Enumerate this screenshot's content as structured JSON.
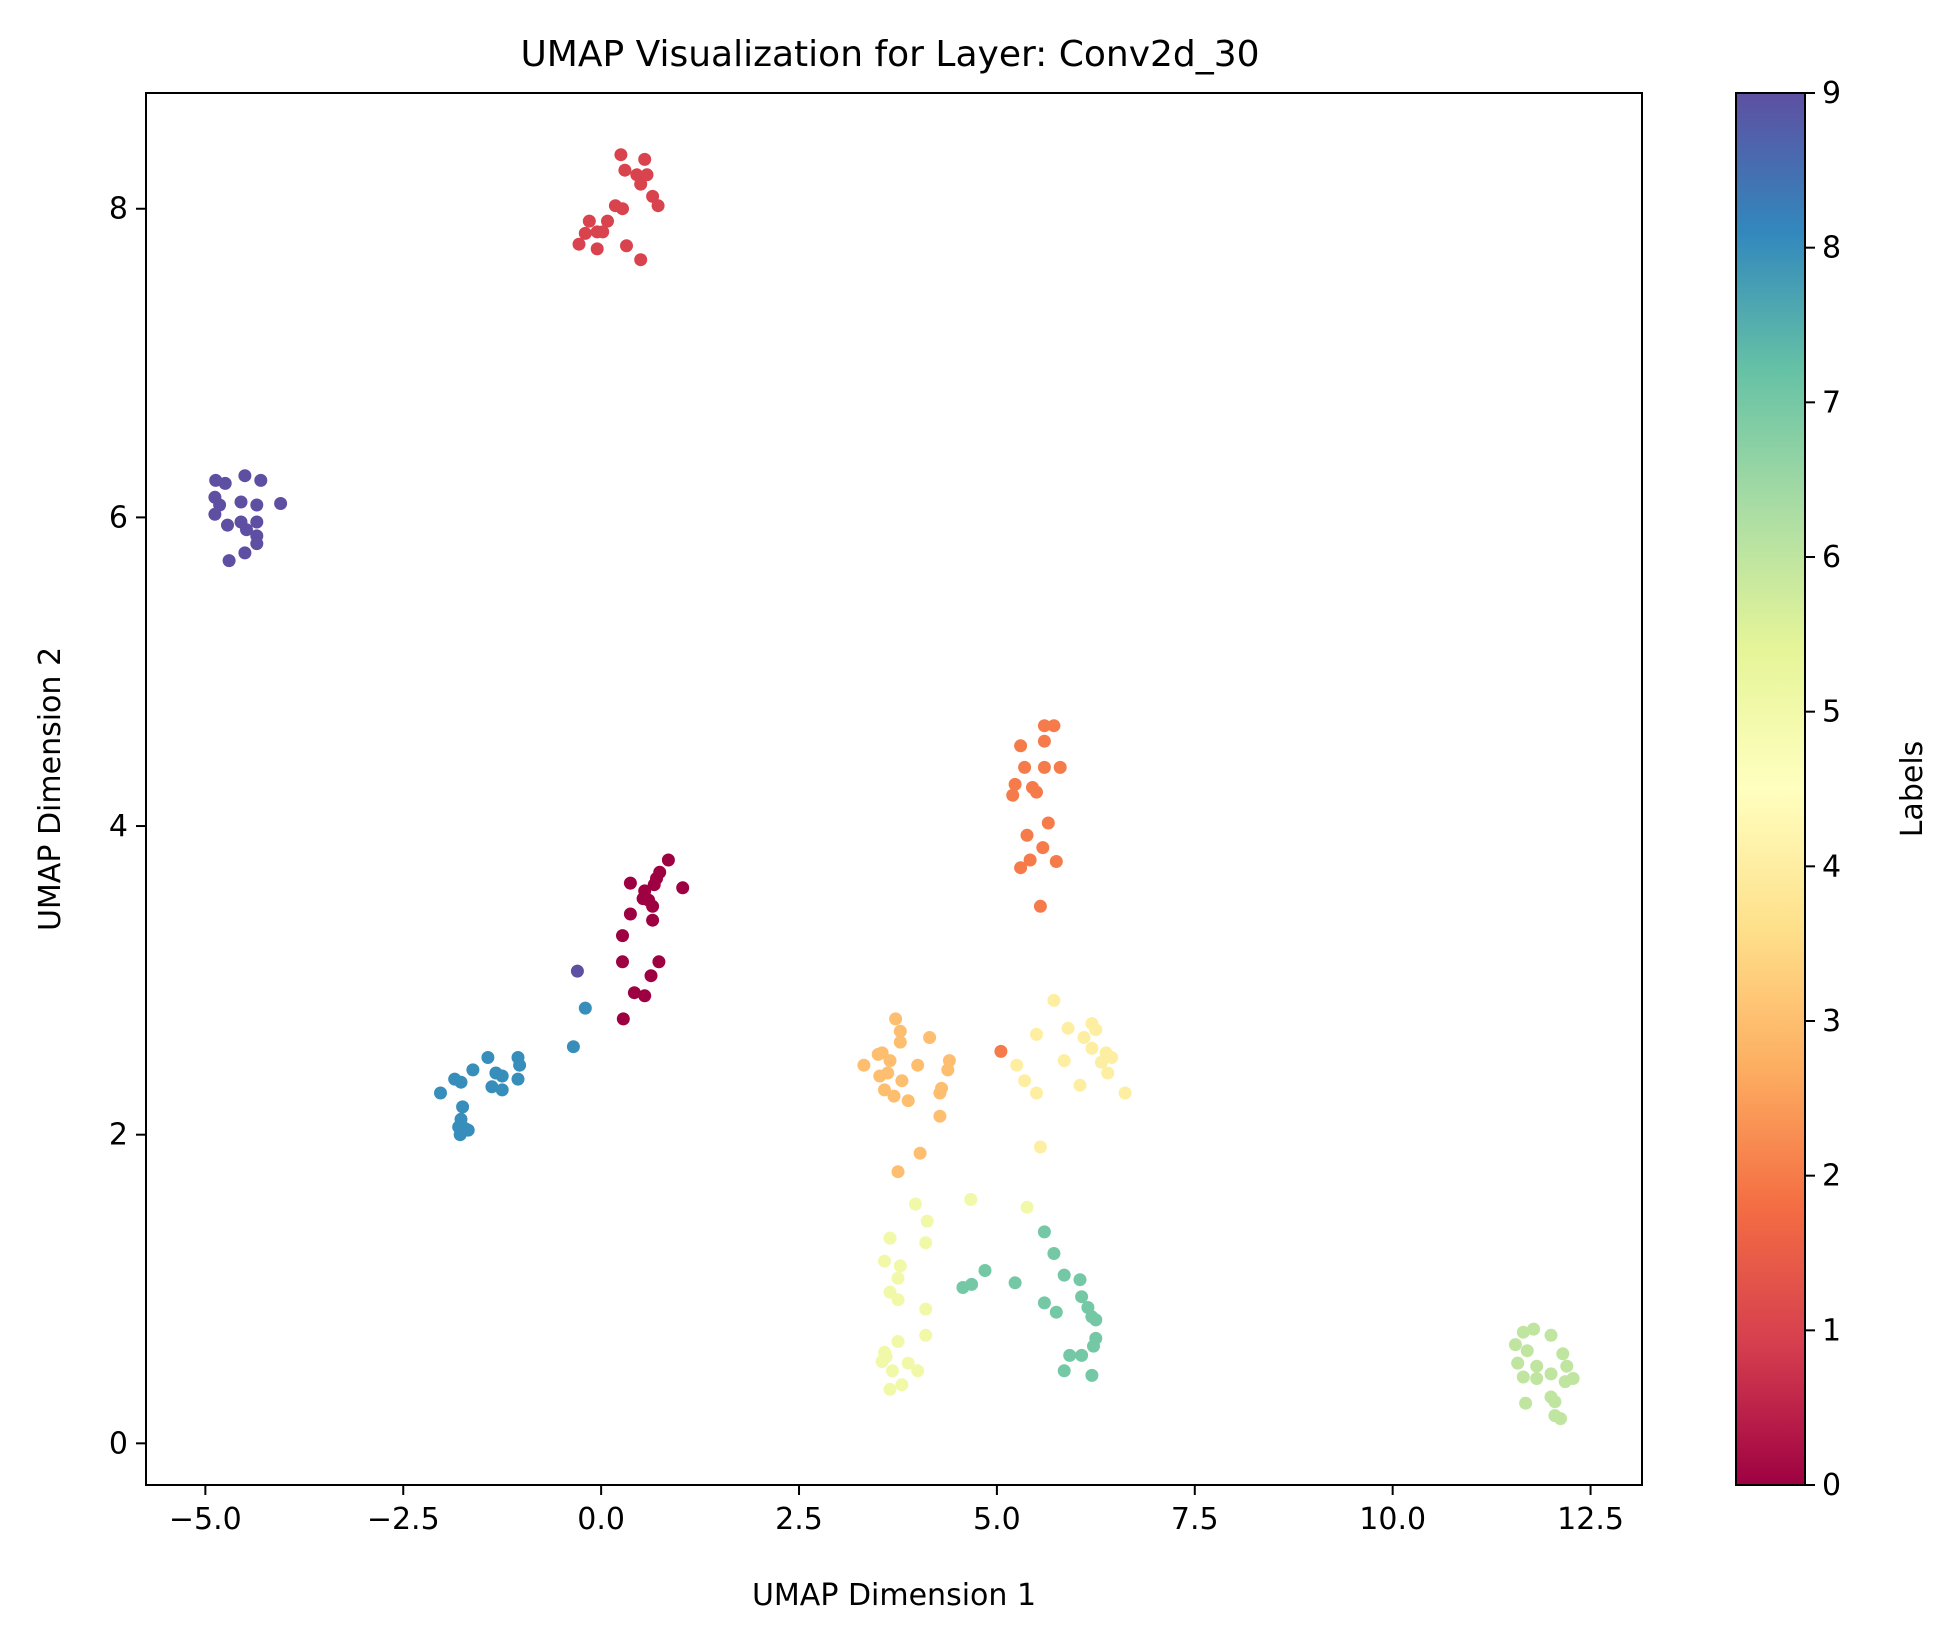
{
  "chart_data": {
    "type": "scatter",
    "title": "UMAP Visualization for Layer: Conv2d_30",
    "xlabel": "UMAP Dimension 1",
    "ylabel": "UMAP Dimension 2",
    "xlim": [
      -5.75,
      13.15
    ],
    "ylim": [
      -0.27,
      8.75
    ],
    "xticks": [
      -5.0,
      -2.5,
      0.0,
      2.5,
      5.0,
      7.5,
      10.0,
      12.5
    ],
    "xtick_labels": [
      "−5.0",
      "−2.5",
      "0.0",
      "2.5",
      "5.0",
      "7.5",
      "10.0",
      "12.5"
    ],
    "yticks": [
      0,
      2,
      4,
      6,
      8
    ],
    "ytick_labels": [
      "0",
      "2",
      "4",
      "6",
      "8"
    ],
    "colormap": "Spectral",
    "colorbar": {
      "label": "Labels",
      "min": 0,
      "max": 9,
      "ticks": [
        0,
        1,
        2,
        3,
        4,
        5,
        6,
        7,
        8,
        9
      ],
      "tick_labels": [
        "0",
        "1",
        "2",
        "3",
        "4",
        "5",
        "6",
        "7",
        "8",
        "9"
      ],
      "colors": [
        "#9e0142",
        "#d53e4f",
        "#f46d43",
        "#fdae61",
        "#fee08b",
        "#ffffbf",
        "#e6f598",
        "#abdda4",
        "#66c2a5",
        "#3288bd",
        "#5e4fa2"
      ]
    },
    "grid": false,
    "legend": "none",
    "series": [
      {
        "label": 0,
        "points": [
          [
            0.37,
            3.63
          ],
          [
            0.55,
            3.58
          ],
          [
            0.67,
            3.62
          ],
          [
            0.7,
            3.66
          ],
          [
            0.74,
            3.7
          ],
          [
            0.85,
            3.78
          ],
          [
            1.03,
            3.6
          ],
          [
            0.53,
            3.53
          ],
          [
            0.6,
            3.52
          ],
          [
            0.65,
            3.48
          ],
          [
            0.37,
            3.43
          ],
          [
            0.65,
            3.39
          ],
          [
            0.27,
            3.29
          ],
          [
            0.73,
            3.12
          ],
          [
            0.27,
            3.12
          ],
          [
            0.63,
            3.03
          ],
          [
            0.42,
            2.92
          ],
          [
            0.55,
            2.9
          ],
          [
            0.28,
            2.75
          ]
        ]
      },
      {
        "label": 1,
        "points": [
          [
            0.25,
            8.35
          ],
          [
            0.55,
            8.32
          ],
          [
            0.3,
            8.25
          ],
          [
            0.45,
            8.22
          ],
          [
            0.58,
            8.22
          ],
          [
            0.5,
            8.16
          ],
          [
            0.65,
            8.08
          ],
          [
            0.72,
            8.02
          ],
          [
            0.18,
            8.02
          ],
          [
            0.27,
            8.0
          ],
          [
            -0.15,
            7.92
          ],
          [
            0.08,
            7.92
          ],
          [
            -0.05,
            7.85
          ],
          [
            0.02,
            7.85
          ],
          [
            -0.2,
            7.84
          ],
          [
            -0.28,
            7.77
          ],
          [
            0.32,
            7.76
          ],
          [
            -0.05,
            7.74
          ],
          [
            0.5,
            7.67
          ]
        ]
      },
      {
        "label": 2,
        "points": [
          [
            5.6,
            4.65
          ],
          [
            5.72,
            4.65
          ],
          [
            5.6,
            4.55
          ],
          [
            5.3,
            4.52
          ],
          [
            5.35,
            4.38
          ],
          [
            5.6,
            4.38
          ],
          [
            5.8,
            4.38
          ],
          [
            5.23,
            4.27
          ],
          [
            5.45,
            4.25
          ],
          [
            5.5,
            4.22
          ],
          [
            5.2,
            4.2
          ],
          [
            5.65,
            4.02
          ],
          [
            5.38,
            3.94
          ],
          [
            5.58,
            3.86
          ],
          [
            5.42,
            3.78
          ],
          [
            5.75,
            3.77
          ],
          [
            5.3,
            3.73
          ],
          [
            5.55,
            3.48
          ],
          [
            5.05,
            2.54
          ]
        ]
      },
      {
        "label": 3,
        "points": [
          [
            3.72,
            2.75
          ],
          [
            3.78,
            2.67
          ],
          [
            3.55,
            2.53
          ],
          [
            3.78,
            2.6
          ],
          [
            4.15,
            2.63
          ],
          [
            3.5,
            2.52
          ],
          [
            3.65,
            2.48
          ],
          [
            4.4,
            2.48
          ],
          [
            3.32,
            2.45
          ],
          [
            4.0,
            2.45
          ],
          [
            3.62,
            2.4
          ],
          [
            4.38,
            2.42
          ],
          [
            3.52,
            2.38
          ],
          [
            3.8,
            2.35
          ],
          [
            4.3,
            2.3
          ],
          [
            3.58,
            2.29
          ],
          [
            4.28,
            2.27
          ],
          [
            3.7,
            2.25
          ],
          [
            3.88,
            2.22
          ],
          [
            4.28,
            2.12
          ],
          [
            4.03,
            1.88
          ],
          [
            3.75,
            1.76
          ]
        ]
      },
      {
        "label": 4,
        "points": [
          [
            5.72,
            2.87
          ],
          [
            5.5,
            2.65
          ],
          [
            5.9,
            2.69
          ],
          [
            6.1,
            2.63
          ],
          [
            6.2,
            2.72
          ],
          [
            6.25,
            2.68
          ],
          [
            6.2,
            2.56
          ],
          [
            6.38,
            2.53
          ],
          [
            5.25,
            2.45
          ],
          [
            5.85,
            2.48
          ],
          [
            6.45,
            2.5
          ],
          [
            6.32,
            2.47
          ],
          [
            6.4,
            2.4
          ],
          [
            5.35,
            2.35
          ],
          [
            6.05,
            2.32
          ],
          [
            5.5,
            2.27
          ],
          [
            6.62,
            2.27
          ],
          [
            5.55,
            1.92
          ]
        ]
      },
      {
        "label": 5,
        "points": [
          [
            4.67,
            1.58
          ],
          [
            3.97,
            1.55
          ],
          [
            5.38,
            1.53
          ],
          [
            4.12,
            1.44
          ],
          [
            3.65,
            1.33
          ],
          [
            4.1,
            1.3
          ],
          [
            3.58,
            1.18
          ],
          [
            3.78,
            1.15
          ],
          [
            3.75,
            1.07
          ],
          [
            3.65,
            0.98
          ],
          [
            3.75,
            0.93
          ],
          [
            4.1,
            0.87
          ],
          [
            4.1,
            0.7
          ],
          [
            3.75,
            0.66
          ],
          [
            3.58,
            0.59
          ],
          [
            3.6,
            0.56
          ],
          [
            3.55,
            0.53
          ],
          [
            3.88,
            0.52
          ],
          [
            4.0,
            0.47
          ],
          [
            3.68,
            0.47
          ],
          [
            3.8,
            0.38
          ],
          [
            3.65,
            0.35
          ]
        ]
      },
      {
        "label": 6,
        "points": [
          [
            11.78,
            0.74
          ],
          [
            11.65,
            0.72
          ],
          [
            12.0,
            0.7
          ],
          [
            11.55,
            0.64
          ],
          [
            11.7,
            0.6
          ],
          [
            12.15,
            0.58
          ],
          [
            11.58,
            0.52
          ],
          [
            11.82,
            0.5
          ],
          [
            12.2,
            0.5
          ],
          [
            12.0,
            0.45
          ],
          [
            11.65,
            0.43
          ],
          [
            11.82,
            0.42
          ],
          [
            12.28,
            0.42
          ],
          [
            12.18,
            0.4
          ],
          [
            12.0,
            0.3
          ],
          [
            12.05,
            0.27
          ],
          [
            11.68,
            0.26
          ],
          [
            12.05,
            0.18
          ],
          [
            12.12,
            0.16
          ]
        ]
      },
      {
        "label": 7,
        "points": [
          [
            5.6,
            1.37
          ],
          [
            5.72,
            1.23
          ],
          [
            4.85,
            1.12
          ],
          [
            5.85,
            1.09
          ],
          [
            6.05,
            1.06
          ],
          [
            5.23,
            1.04
          ],
          [
            4.68,
            1.03
          ],
          [
            4.57,
            1.01
          ],
          [
            6.07,
            0.95
          ],
          [
            5.6,
            0.91
          ],
          [
            6.15,
            0.88
          ],
          [
            5.75,
            0.85
          ],
          [
            6.2,
            0.82
          ],
          [
            6.25,
            0.8
          ],
          [
            6.25,
            0.68
          ],
          [
            6.22,
            0.63
          ],
          [
            5.92,
            0.57
          ],
          [
            6.07,
            0.57
          ],
          [
            5.85,
            0.47
          ],
          [
            6.2,
            0.44
          ]
        ]
      },
      {
        "label": 8,
        "points": [
          [
            -1.05,
            2.5
          ],
          [
            -1.43,
            2.5
          ],
          [
            -1.03,
            2.45
          ],
          [
            -1.62,
            2.42
          ],
          [
            -1.33,
            2.4
          ],
          [
            -1.25,
            2.38
          ],
          [
            -1.85,
            2.36
          ],
          [
            -1.05,
            2.36
          ],
          [
            -1.77,
            2.34
          ],
          [
            -1.38,
            2.31
          ],
          [
            -1.25,
            2.29
          ],
          [
            -2.03,
            2.27
          ],
          [
            -1.75,
            2.18
          ],
          [
            -1.77,
            2.1
          ],
          [
            -1.8,
            2.05
          ],
          [
            -1.72,
            2.04
          ],
          [
            -1.78,
            2.0
          ],
          [
            -1.68,
            2.03
          ],
          [
            -0.2,
            2.82
          ],
          [
            -0.35,
            2.57
          ]
        ]
      },
      {
        "label": 9,
        "points": [
          [
            -4.5,
            6.27
          ],
          [
            -4.87,
            6.24
          ],
          [
            -4.75,
            6.22
          ],
          [
            -4.3,
            6.24
          ],
          [
            -4.88,
            6.13
          ],
          [
            -4.82,
            6.08
          ],
          [
            -4.55,
            6.1
          ],
          [
            -4.35,
            6.08
          ],
          [
            -4.05,
            6.09
          ],
          [
            -4.88,
            6.02
          ],
          [
            -4.72,
            5.95
          ],
          [
            -4.55,
            5.97
          ],
          [
            -4.35,
            5.97
          ],
          [
            -4.48,
            5.92
          ],
          [
            -4.35,
            5.88
          ],
          [
            -4.35,
            5.83
          ],
          [
            -4.5,
            5.77
          ],
          [
            -4.7,
            5.72
          ],
          [
            -0.3,
            3.06
          ]
        ]
      }
    ]
  }
}
